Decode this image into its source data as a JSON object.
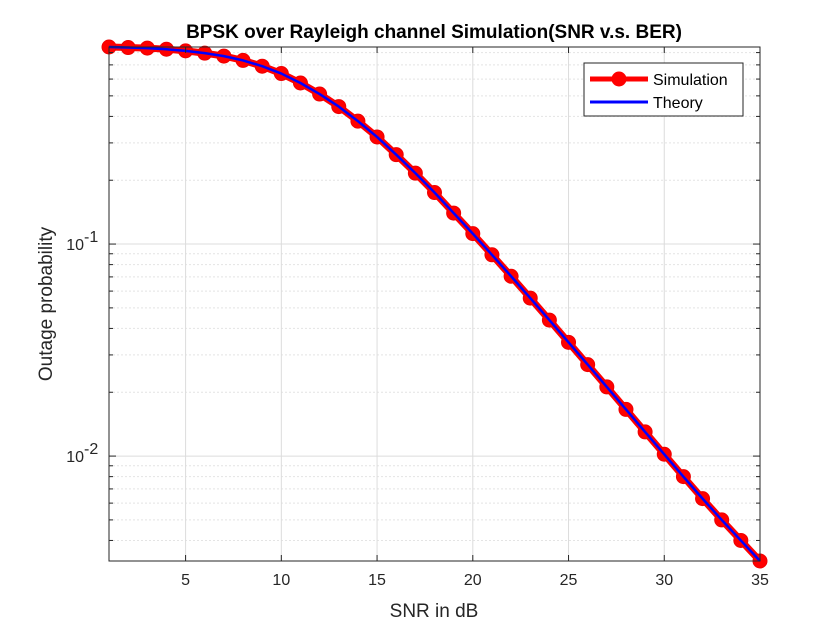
{
  "chart_data": {
    "type": "line",
    "title": "BPSK over Rayleigh channel Simulation(SNR v.s. BER)",
    "xlabel": "SNR in dB",
    "ylabel": "Outage probability",
    "xlim": [
      1,
      35
    ],
    "ylim": [
      0.0032,
      0.85
    ],
    "y_scale": "log",
    "grid": true,
    "minor_grid": true,
    "legend_position": "top-right",
    "x_ticks": [
      5,
      10,
      15,
      20,
      25,
      30,
      35
    ],
    "x_tick_labels": [
      "5",
      "10",
      "15",
      "20",
      "25",
      "30",
      "35"
    ],
    "y_ticks": [
      0.1,
      0.01
    ],
    "y_tick_labels": [
      {
        "base": "10",
        "exp": "-1"
      },
      {
        "base": "10",
        "exp": "-2"
      }
    ],
    "x": [
      1,
      2,
      3,
      4,
      5,
      6,
      7,
      8,
      9,
      10,
      11,
      12,
      13,
      14,
      15,
      16,
      17,
      18,
      19,
      20,
      21,
      22,
      23,
      24,
      25,
      26,
      27,
      28,
      29,
      30,
      31,
      32,
      33,
      34,
      35
    ],
    "series": [
      {
        "name": "Simulation",
        "color": "#ff0000",
        "marker": "circle",
        "values": [
          0.85,
          0.845,
          0.84,
          0.83,
          0.815,
          0.795,
          0.77,
          0.735,
          0.69,
          0.637,
          0.575,
          0.51,
          0.445,
          0.38,
          0.32,
          0.264,
          0.216,
          0.175,
          0.14,
          0.112,
          0.089,
          0.0705,
          0.0556,
          0.0438,
          0.0344,
          0.027,
          0.0212,
          0.0166,
          0.013,
          0.0102,
          0.008,
          0.0063,
          0.005,
          0.004,
          0.0032
        ]
      },
      {
        "name": "Theory",
        "color": "#0000ff",
        "marker": "none",
        "values": [
          0.85,
          0.845,
          0.84,
          0.83,
          0.815,
          0.795,
          0.77,
          0.735,
          0.69,
          0.637,
          0.575,
          0.51,
          0.445,
          0.38,
          0.32,
          0.264,
          0.216,
          0.175,
          0.14,
          0.112,
          0.089,
          0.0705,
          0.0556,
          0.0438,
          0.0344,
          0.027,
          0.0212,
          0.0166,
          0.013,
          0.0102,
          0.008,
          0.0063,
          0.005,
          0.004,
          0.0032
        ]
      }
    ]
  }
}
